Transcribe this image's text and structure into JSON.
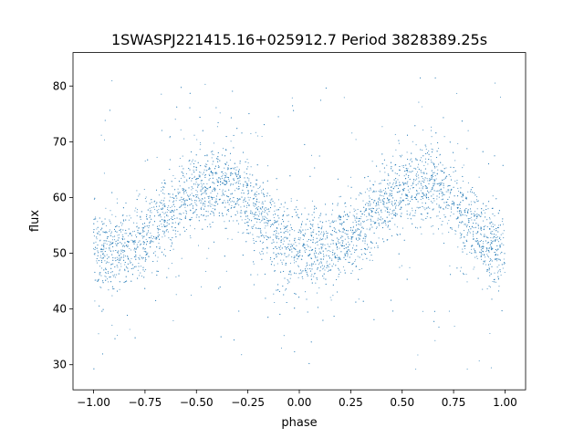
{
  "chart_data": {
    "type": "scatter",
    "title": "1SWASPJ221415.16+025912.7 Period 3828389.25s",
    "xlabel": "phase",
    "ylabel": "flux",
    "xlim": [
      -1.1,
      1.1
    ],
    "ylim": [
      25.5,
      86
    ],
    "xticks": [
      -1.0,
      -0.75,
      -0.5,
      -0.25,
      0.0,
      0.25,
      0.5,
      0.75,
      1.0
    ],
    "xtick_labels": [
      "−1.00",
      "−0.75",
      "−0.50",
      "−0.25",
      "0.00",
      "0.25",
      "0.50",
      "0.75",
      "1.00"
    ],
    "yticks": [
      30,
      40,
      50,
      60,
      70,
      80
    ],
    "ytick_labels": [
      "30",
      "40",
      "50",
      "60",
      "70",
      "80"
    ],
    "grid": false,
    "point_color": "#1f77b4",
    "series": [
      {
        "x": [
          -1.0,
          -0.95,
          -0.9,
          -0.85,
          -0.8,
          -0.75,
          -0.7,
          -0.65,
          -0.6,
          -0.55,
          -0.5,
          -0.45,
          -0.4,
          -0.35,
          -0.3,
          -0.25,
          -0.2,
          -0.15,
          -0.1,
          -0.05,
          0.0,
          0.05,
          0.1,
          0.15,
          0.2,
          0.25,
          0.3,
          0.35,
          0.4,
          0.45,
          0.5,
          0.55,
          0.6,
          0.65,
          0.7,
          0.75,
          0.8,
          0.85,
          0.9,
          0.95,
          1.0
        ],
        "y": [
          51,
          50,
          50.5,
          51,
          52,
          53,
          54.5,
          56.5,
          58.5,
          60,
          61,
          61.5,
          62,
          62.5,
          61.5,
          59.5,
          57,
          54.5,
          52.5,
          51,
          50.5,
          50,
          50.5,
          51,
          52,
          53,
          54.5,
          56.5,
          58.5,
          60,
          61,
          61.5,
          62,
          62.5,
          61.5,
          59.5,
          57,
          54.5,
          52.5,
          51,
          50.5
        ]
      }
    ]
  }
}
